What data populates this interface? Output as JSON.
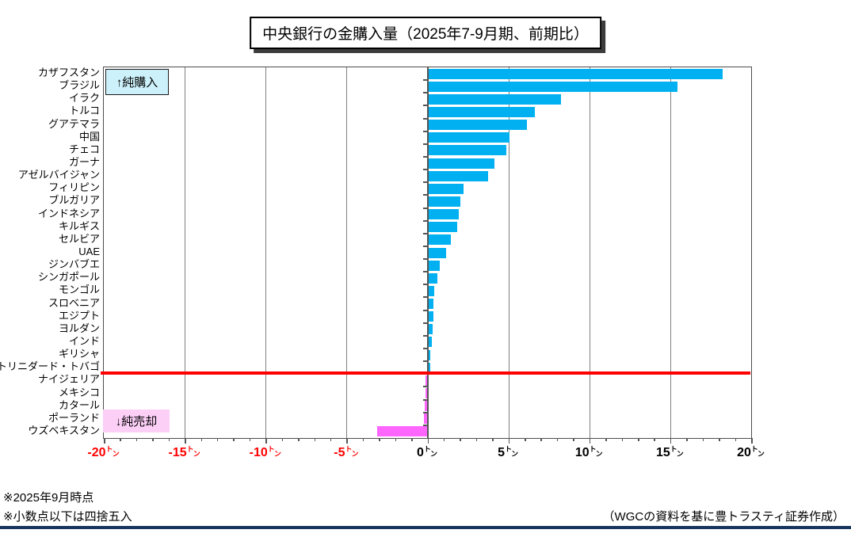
{
  "title": "中央銀行の金購入量（2025年7-9月期、前期比）",
  "legend": {
    "net_purchase": "↑純購入",
    "net_sale": "↓純売却"
  },
  "notes": [
    "※2025年9月時点",
    "※小数点以下は四捨五入"
  ],
  "source": "（WGCの資料を基に豊トラスティ証券作成）",
  "colors": {
    "bar_positive": "#00b0f0",
    "bar_negative": "#ff66ff",
    "divider_red": "#ff0000",
    "axis_label_negative": "#ff0000",
    "axis_label_positive": "#000000",
    "legend_purchase_bg": "#cdf1fb",
    "legend_sale_bg": "#fccff7",
    "footer_rule": "#17365d",
    "gridline": "#808080"
  },
  "chart_data": {
    "type": "bar",
    "orientation": "horizontal",
    "title": "中央銀行の金購入量（2025年7-9月期、前期比）",
    "unit": "トン",
    "xlim": [
      -20,
      20
    ],
    "x_major_ticks": [
      -20,
      -15,
      -10,
      -5,
      0,
      5,
      10,
      15,
      20
    ],
    "x_minor_tick_step": 1,
    "grid": "vertical-major",
    "categories": [
      "カザフスタン",
      "ブラジル",
      "イラク",
      "トルコ",
      "グアテマラ",
      "中国",
      "チェコ",
      "ガーナ",
      "アゼルバイジャン",
      "フィリピン",
      "ブルガリア",
      "インドネシア",
      "キルギス",
      "セルビア",
      "UAE",
      "ジンバブエ",
      "シンガポール",
      "モンゴル",
      "スロベニア",
      "エジプト",
      "ヨルダン",
      "インド",
      "ギリシャ",
      "トリニダード・トバゴ",
      "ナイジェリア",
      "メキシコ",
      "カタール",
      "ポーランド",
      "ウズベキスタン"
    ],
    "values": [
      18.2,
      15.4,
      8.2,
      6.6,
      6.1,
      5.0,
      4.8,
      4.1,
      3.7,
      2.2,
      2.0,
      1.9,
      1.8,
      1.4,
      1.1,
      0.7,
      0.55,
      0.35,
      0.3,
      0.3,
      0.25,
      0.2,
      0.1,
      0.1,
      -0.1,
      -0.1,
      -0.15,
      -0.2,
      -3.1
    ],
    "annotations": [
      "↑純購入",
      "↓純売却"
    ]
  }
}
